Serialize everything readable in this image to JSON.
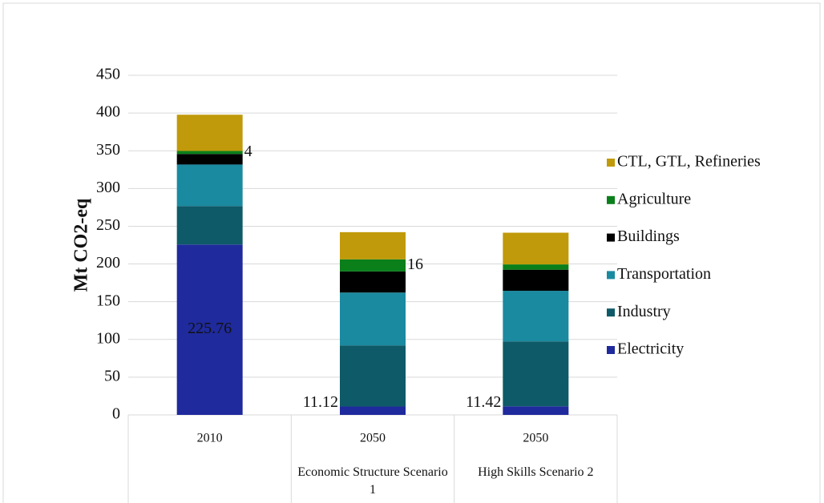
{
  "chart_data": {
    "type": "stacked_bar",
    "y_label": "Mt CO2-eq",
    "categories": [
      "2010",
      "2050",
      "2050"
    ],
    "subcategories": [
      null,
      "Economic Structure Scenario 1",
      "High Skills Scenario 2"
    ],
    "ylim": [
      0,
      450
    ],
    "yticks": [
      0,
      50,
      100,
      150,
      200,
      250,
      300,
      350,
      400,
      450
    ],
    "grid": true,
    "legend": "right",
    "series": [
      {
        "name": "Electricity",
        "color": "#1f2a9c",
        "values": [
          225.76,
          11.12,
          11.42
        ],
        "value_labels": [
          "225.76",
          "11.12",
          "11.42"
        ]
      },
      {
        "name": "Industry",
        "color": "#0e5a68",
        "values": [
          51,
          81,
          86
        ]
      },
      {
        "name": "Transportation",
        "color": "#1a8aa0",
        "values": [
          55,
          70,
          67
        ]
      },
      {
        "name": "Buildings",
        "color": "#000000",
        "values": [
          14,
          28,
          28
        ]
      },
      {
        "name": "Agriculture",
        "color": "#0a7f1a",
        "values": [
          4,
          16,
          7
        ],
        "value_labels": [
          "4",
          "16",
          null
        ]
      },
      {
        "name": "CTL, GTL, Refineries",
        "color": "#c09a0a",
        "values": [
          48,
          36,
          42
        ]
      }
    ]
  }
}
